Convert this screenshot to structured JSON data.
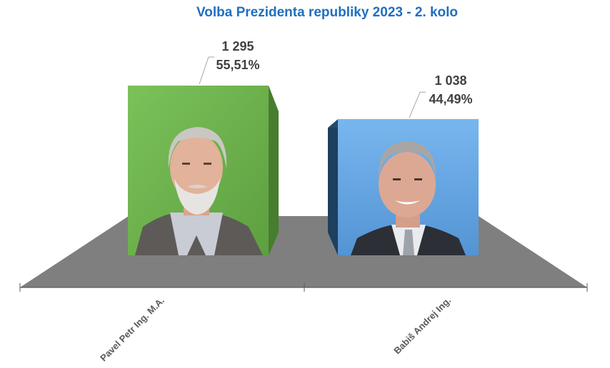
{
  "chart_data": {
    "type": "bar",
    "title": "Volba Prezidenta republiky 2023 - 2. kolo",
    "categories": [
      "Pavel Petr Ing. M.A.",
      "Babiš Andrej Ing."
    ],
    "values": [
      1295,
      1038
    ],
    "value_labels": [
      "1 295",
      "1 038"
    ],
    "percent_labels": [
      "55,51%",
      "44,49%"
    ],
    "percent": [
      55.51,
      44.49
    ],
    "xlabel": "",
    "ylabel": "",
    "ylim": [
      0,
      1295
    ],
    "grid": false,
    "legend": "none",
    "colors": {
      "title": "#1f6fc0",
      "bars": [
        "#6ab04c",
        "#5fa0de"
      ],
      "bars_side": [
        "#467d2f",
        "#1e3f5e"
      ],
      "bars_top": [
        "#58963d",
        "#244b6e"
      ],
      "floor": "#7f7f7f",
      "axis": "#595959"
    },
    "portraits": [
      "portrait-pavel-icon",
      "portrait-babis-icon"
    ]
  }
}
